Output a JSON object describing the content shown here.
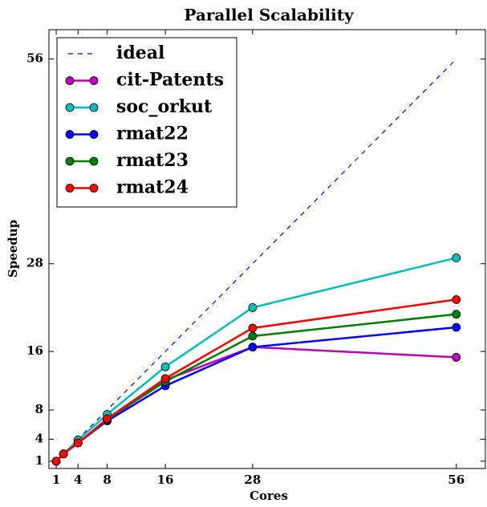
{
  "chart_data": {
    "type": "line",
    "title": "Parallel Scalability",
    "x_label": "Cores",
    "y_label": "Speedup",
    "x": [
      1,
      2,
      4,
      8,
      16,
      28,
      56
    ],
    "series": [
      {
        "name": "ideal",
        "color": "#0000ff",
        "dashed": true,
        "x": [
          1,
          56
        ],
        "values": [
          1,
          56
        ]
      },
      {
        "name": "cit-Patents",
        "color": "#bf00bf",
        "values": [
          1,
          2,
          3.5,
          6.6,
          12.1,
          16.6,
          15.2
        ]
      },
      {
        "name": "soc_orkut",
        "color": "#00bfbf",
        "values": [
          1,
          2,
          3.9,
          7.4,
          13.9,
          22,
          28.8
        ]
      },
      {
        "name": "rmat22",
        "color": "#0000ff",
        "values": [
          1,
          2,
          3.5,
          6.5,
          11.3,
          16.6,
          19.3
        ]
      },
      {
        "name": "rmat23",
        "color": "#008000",
        "values": [
          1,
          2,
          3.5,
          6.7,
          11.9,
          18.1,
          21.1
        ]
      },
      {
        "name": "rmat24",
        "color": "#ff0000",
        "values": [
          1,
          2,
          3.5,
          6.8,
          12.3,
          19.2,
          23.1
        ]
      }
    ],
    "xlim": [
      0,
      60
    ],
    "ylim": [
      0,
      60
    ],
    "xticks": [
      1,
      4,
      8,
      16,
      28,
      56
    ],
    "yticks": [
      1,
      4,
      8,
      16,
      28,
      56
    ],
    "legend": "upper left"
  }
}
